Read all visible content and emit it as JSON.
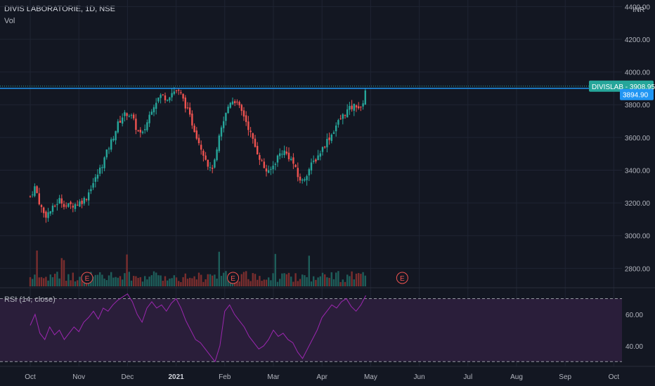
{
  "header": {
    "symbol_line": "DIVIS LABORATORIE, 1D, NSE",
    "vol_label": "Vol",
    "currency": "INR"
  },
  "price_tags": {
    "ticker_label": "DIVISLAB - 3908.95",
    "current_label": "3894.90"
  },
  "colors": {
    "background": "#131722",
    "up": "#26a69a",
    "down": "#ef5350",
    "grid": "#1f2433",
    "resistance_line": "#2196f3",
    "ticker_tag": "#26a69a",
    "current_tag": "#2196f3",
    "rsi_line": "#9c27b0",
    "rsi_band": "#2a1e3a",
    "earnings": "#ef5350"
  },
  "chart_data": [
    {
      "type": "candlestick",
      "title": "DIVIS LABORATORIE, 1D, NSE",
      "x_labels": [
        "Oct",
        "Nov",
        "Dec",
        "2021",
        "Feb",
        "Mar",
        "Apr",
        "May",
        "Jun",
        "Jul",
        "Aug",
        "Sep",
        "Oct"
      ],
      "y_ticks": [
        2800,
        3000,
        3200,
        3400,
        3600,
        3800,
        4000,
        4200,
        4400
      ],
      "y_tick_labels": [
        "2800.00",
        "3000.00",
        "3200.00",
        "3400.00",
        "3600.00",
        "3800.00",
        "4000.00",
        "4200.00",
        "4400.00"
      ],
      "ylim": [
        2690,
        4440
      ],
      "resistance_level": 3900,
      "last_price": 3908.95,
      "earnings_markers": [
        {
          "label": "E",
          "month_pos": 1.17
        },
        {
          "label": "E",
          "month_pos": 4.17
        },
        {
          "label": "E",
          "month_pos": 7.65
        }
      ],
      "close_path": [
        [
          0.0,
          3240
        ],
        [
          0.1,
          3300
        ],
        [
          0.2,
          3190
        ],
        [
          0.3,
          3120
        ],
        [
          0.45,
          3160
        ],
        [
          0.6,
          3220
        ],
        [
          0.75,
          3180
        ],
        [
          0.9,
          3190
        ],
        [
          1.0,
          3200
        ],
        [
          1.15,
          3230
        ],
        [
          1.25,
          3300
        ],
        [
          1.35,
          3350
        ],
        [
          1.5,
          3450
        ],
        [
          1.6,
          3530
        ],
        [
          1.7,
          3600
        ],
        [
          1.8,
          3680
        ],
        [
          1.9,
          3730
        ],
        [
          2.0,
          3750
        ],
        [
          2.1,
          3720
        ],
        [
          2.2,
          3640
        ],
        [
          2.3,
          3610
        ],
        [
          2.4,
          3690
        ],
        [
          2.5,
          3780
        ],
        [
          2.6,
          3830
        ],
        [
          2.7,
          3860
        ],
        [
          2.8,
          3840
        ],
        [
          2.9,
          3870
        ],
        [
          3.0,
          3890
        ],
        [
          3.1,
          3860
        ],
        [
          3.2,
          3790
        ],
        [
          3.3,
          3710
        ],
        [
          3.4,
          3630
        ],
        [
          3.5,
          3550
        ],
        [
          3.6,
          3480
        ],
        [
          3.7,
          3400
        ],
        [
          3.8,
          3450
        ],
        [
          3.9,
          3620
        ],
        [
          4.0,
          3720
        ],
        [
          4.1,
          3820
        ],
        [
          4.2,
          3830
        ],
        [
          4.3,
          3780
        ],
        [
          4.4,
          3730
        ],
        [
          4.5,
          3650
        ],
        [
          4.6,
          3560
        ],
        [
          4.7,
          3490
        ],
        [
          4.8,
          3420
        ],
        [
          4.9,
          3380
        ],
        [
          5.0,
          3430
        ],
        [
          5.1,
          3490
        ],
        [
          5.2,
          3520
        ],
        [
          5.3,
          3490
        ],
        [
          5.4,
          3450
        ],
        [
          5.5,
          3360
        ],
        [
          5.6,
          3330
        ],
        [
          5.7,
          3390
        ],
        [
          5.8,
          3440
        ],
        [
          5.9,
          3480
        ],
        [
          6.0,
          3530
        ],
        [
          6.1,
          3580
        ],
        [
          6.2,
          3620
        ],
        [
          6.3,
          3680
        ],
        [
          6.4,
          3720
        ],
        [
          6.5,
          3760
        ],
        [
          6.6,
          3780
        ],
        [
          6.7,
          3800
        ],
        [
          6.8,
          3770
        ],
        [
          6.85,
          3830
        ],
        [
          6.9,
          3908
        ]
      ],
      "volume_note": "volume histogram under price"
    },
    {
      "type": "line",
      "title": "RSI (14, close)",
      "y_ticks": [
        40,
        60
      ],
      "y_tick_labels": [
        "40.00",
        "60.00"
      ],
      "band": [
        30,
        70
      ],
      "ylim": [
        27,
        76
      ],
      "x": [
        0.0,
        0.1,
        0.2,
        0.3,
        0.4,
        0.5,
        0.6,
        0.7,
        0.8,
        0.9,
        1.0,
        1.1,
        1.2,
        1.3,
        1.4,
        1.5,
        1.6,
        1.7,
        1.8,
        1.9,
        2.0,
        2.1,
        2.2,
        2.3,
        2.4,
        2.5,
        2.6,
        2.7,
        2.8,
        2.9,
        3.0,
        3.1,
        3.2,
        3.3,
        3.4,
        3.5,
        3.6,
        3.7,
        3.8,
        3.9,
        4.0,
        4.1,
        4.2,
        4.3,
        4.4,
        4.5,
        4.6,
        4.7,
        4.8,
        4.9,
        5.0,
        5.1,
        5.2,
        5.3,
        5.4,
        5.5,
        5.6,
        5.7,
        5.8,
        5.9,
        6.0,
        6.1,
        6.2,
        6.3,
        6.4,
        6.5,
        6.6,
        6.7,
        6.8,
        6.9
      ],
      "series": [
        {
          "values": [
            53,
            60,
            48,
            44,
            52,
            47,
            50,
            44,
            48,
            52,
            49,
            55,
            58,
            62,
            57,
            64,
            62,
            66,
            69,
            71,
            73,
            68,
            60,
            55,
            64,
            68,
            64,
            66,
            62,
            67,
            70,
            64,
            56,
            50,
            44,
            42,
            38,
            34,
            30,
            40,
            62,
            66,
            60,
            56,
            52,
            46,
            42,
            38,
            40,
            44,
            50,
            46,
            48,
            44,
            42,
            36,
            32,
            38,
            44,
            50,
            58,
            62,
            66,
            64,
            68,
            70,
            65,
            62,
            66,
            72
          ]
        }
      ]
    }
  ]
}
